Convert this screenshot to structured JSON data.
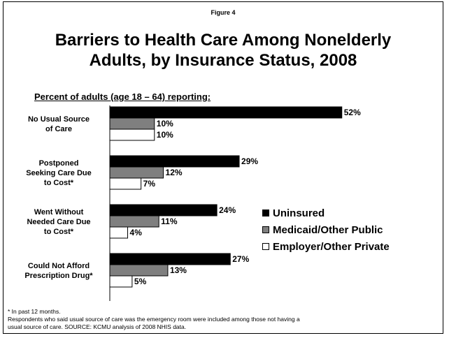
{
  "figure_label": "Figure 4",
  "title_line1": "Barriers to Health Care Among Nonelderly",
  "title_line2": "Adults, by Insurance Status, 2008",
  "subtitle": "Percent of adults (age 18 – 64) reporting:",
  "footnotes": [
    "* In past 12 months.",
    "Respondents who said usual source of care was the emergency room were included among those not having a",
    "usual source of care. SOURCE: KCMU analysis of 2008 NHIS data."
  ],
  "chart_data": {
    "type": "bar",
    "orientation": "horizontal",
    "categories": [
      [
        "No Usual Source",
        "of Care"
      ],
      [
        "Postponed",
        "Seeking Care Due",
        "to Cost*"
      ],
      [
        "Went Without",
        "Needed Care Due",
        "to Cost*"
      ],
      [
        "Could Not Afford",
        "Prescription Drug*"
      ]
    ],
    "series": [
      {
        "name": "Uninsured",
        "color": "#000000",
        "values": [
          52,
          29,
          24,
          27
        ]
      },
      {
        "name": "Medicaid/Other Public",
        "color": "#7f7f7f",
        "values": [
          10,
          12,
          11,
          13
        ]
      },
      {
        "name": "Employer/Other Private",
        "color": "#ffffff",
        "values": [
          10,
          7,
          4,
          5
        ]
      }
    ],
    "value_suffix": "%",
    "xlim": [
      0,
      55
    ],
    "legend_position": "right",
    "grid": false
  }
}
